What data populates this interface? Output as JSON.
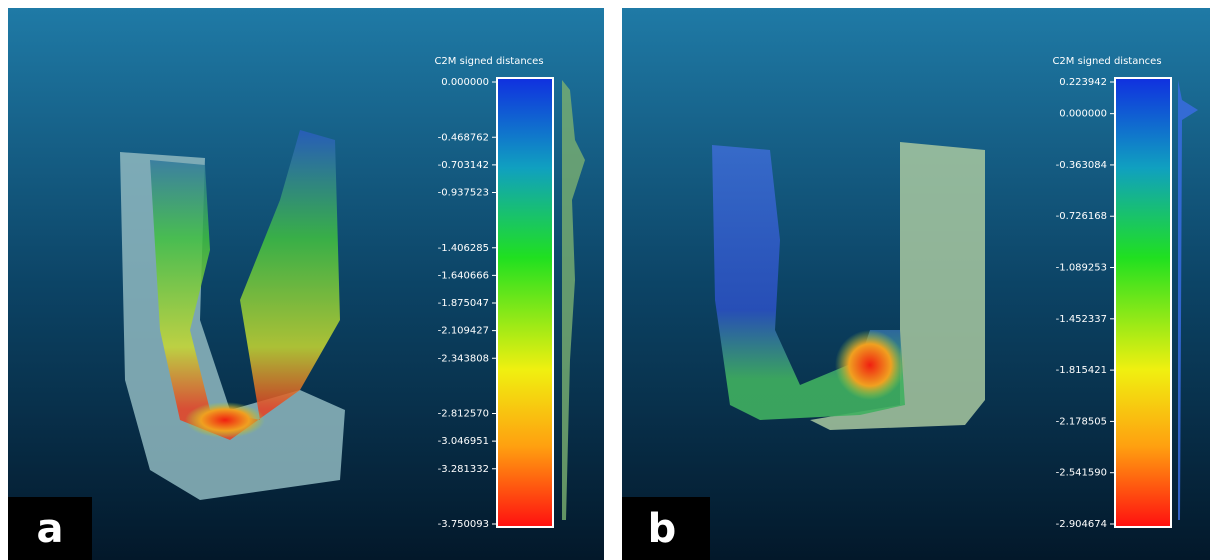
{
  "panels": [
    {
      "label": "a",
      "colorbar": {
        "title": "C2M signed distances",
        "ticks": [
          "0.000000",
          "-0.468762",
          "-0.703142",
          "-0.937523",
          "-1.406285",
          "-1.640666",
          "-1.875047",
          "-2.109427",
          "-2.343808",
          "-2.812570",
          "-3.046951",
          "-3.281332",
          "-3.750093"
        ]
      }
    },
    {
      "label": "b",
      "colorbar": {
        "title": "C2M signed distances",
        "ticks": [
          "0.223942",
          "0.000000",
          "-0.363084",
          "-0.726168",
          "-1.089253",
          "-1.452337",
          "-1.815421",
          "-2.178505",
          "-2.541590",
          "-2.904674"
        ]
      }
    }
  ]
}
